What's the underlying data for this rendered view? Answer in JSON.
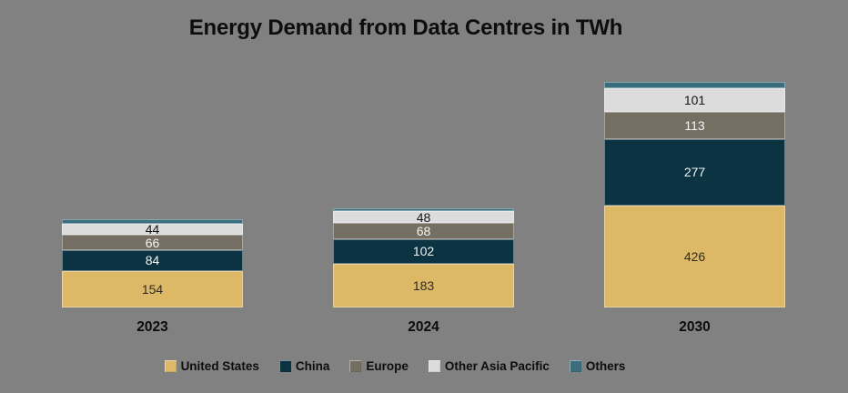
{
  "chart_data": {
    "type": "bar",
    "subtype": "stacked",
    "title": "Energy Demand from Data Centres in TWh",
    "unit": "TWh",
    "categories": [
      "2023",
      "2024",
      "2030"
    ],
    "series": [
      {
        "name": "United States",
        "color": "#ddb967",
        "label_color": "#2f2b24",
        "labels_shown": true,
        "values": [
          154,
          183,
          426
        ]
      },
      {
        "name": "China",
        "color": "#0c3342",
        "label_color": "#f4f4f4",
        "labels_shown": true,
        "values": [
          84,
          102,
          277
        ]
      },
      {
        "name": "Europe",
        "color": "#746f62",
        "label_color": "#f4f4f4",
        "labels_shown": true,
        "values": [
          66,
          68,
          113
        ]
      },
      {
        "name": "Other Asia Pacific",
        "color": "#dcdcdc",
        "label_color": "#141414",
        "labels_shown": true,
        "values": [
          44,
          48,
          101
        ]
      },
      {
        "name": "Others",
        "color": "#3a6e7e",
        "label_color": "#f4f4f4",
        "labels_shown": false,
        "values": [
          20,
          15,
          23
        ],
        "values_estimated": true
      }
    ],
    "legend_position": "bottom",
    "grid": false,
    "axes_shown": false,
    "background": "#818181"
  }
}
